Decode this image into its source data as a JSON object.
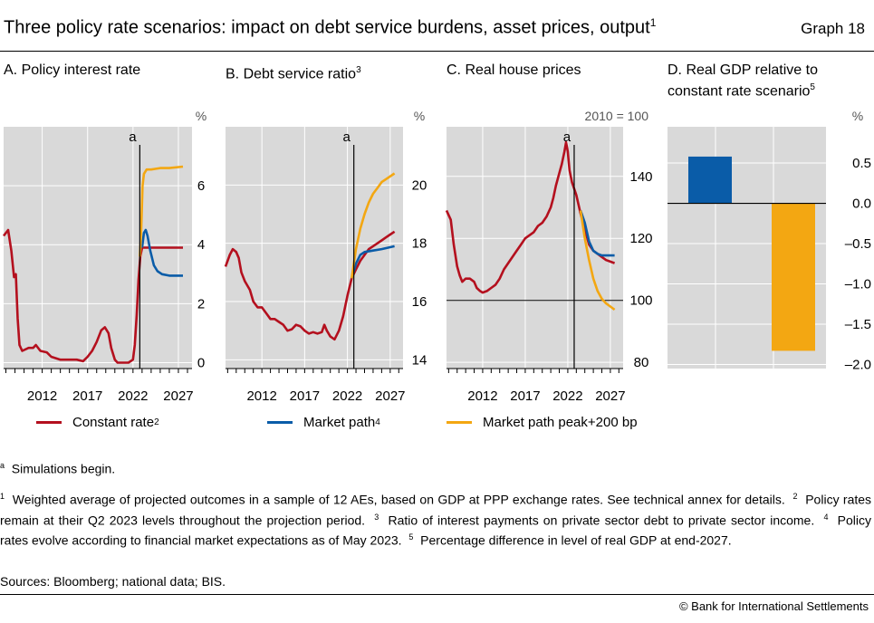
{
  "header": {
    "title": "Three policy rate scenarios: impact on debt service burdens, asset prices, output",
    "title_sup": "1",
    "graph_label": "Graph 18"
  },
  "colors": {
    "constant_rate": "#b4101e",
    "market_path": "#0a5ca8",
    "market_peak": "#f3a712",
    "panel_bg": "#d9d9d9",
    "grid": "#ffffff"
  },
  "panels": {
    "a": {
      "title": "A. Policy interest rate",
      "sup": "",
      "unit": "%",
      "marker": "a"
    },
    "b": {
      "title": "B. Debt service ratio",
      "sup": "3",
      "unit": "%",
      "marker": "a"
    },
    "c": {
      "title": "C. Real house prices",
      "sup": "",
      "unit": "2010 = 100",
      "marker": "a"
    },
    "d": {
      "title_line1": "D. Real GDP relative to",
      "title_line2": "constant rate scenario",
      "sup": "5",
      "unit": "%"
    }
  },
  "legend": {
    "constant_rate": "Constant rate",
    "constant_rate_sup": "2",
    "market_path": "Market path",
    "market_path_sup": "4",
    "market_peak": "Market path peak+200 bp"
  },
  "notes": {
    "a": "Simulations begin.",
    "n1": "Weighted average of projected outcomes in a sample of 12 AEs, based on GDP at PPP exchange rates. See technical annex for details.",
    "n2": "Policy rates remain at their Q2 2023 levels throughout the projection period.",
    "n3": "Ratio of interest payments on private sector debt to private sector income.",
    "n4": "Policy rates evolve according to financial market expectations as of May 2023.",
    "n5": "Percentage difference in level of real GDP at end-2027.",
    "sources": "Sources: Bloomberg; national data; BIS."
  },
  "copyright": "© Bank for International Settlements",
  "chart_data": [
    {
      "type": "line",
      "title": "A. Policy interest rate",
      "unit": "%",
      "xlim": [
        2007.75,
        2028.5
      ],
      "ylim": [
        -0.2,
        8.0
      ],
      "yticks": [
        0,
        2,
        4,
        6
      ],
      "xticks": [
        2012,
        2017,
        2022,
        2027
      ],
      "marker_x": 2022.75,
      "marker_label": "a",
      "series": [
        {
          "name": "Constant rate",
          "key": "constant_rate",
          "points": [
            [
              2007.75,
              4.3
            ],
            [
              2008.25,
              4.5
            ],
            [
              2008.6,
              3.8
            ],
            [
              2008.9,
              2.9
            ],
            [
              2009.1,
              3.0
            ],
            [
              2009.3,
              1.5
            ],
            [
              2009.5,
              0.6
            ],
            [
              2009.8,
              0.4
            ],
            [
              2010.5,
              0.5
            ],
            [
              2011.0,
              0.5
            ],
            [
              2011.3,
              0.6
            ],
            [
              2011.8,
              0.4
            ],
            [
              2012.5,
              0.35
            ],
            [
              2013,
              0.2
            ],
            [
              2014,
              0.1
            ],
            [
              2015,
              0.1
            ],
            [
              2015.8,
              0.1
            ],
            [
              2016.5,
              0.05
            ],
            [
              2017,
              0.2
            ],
            [
              2017.5,
              0.4
            ],
            [
              2018,
              0.7
            ],
            [
              2018.5,
              1.1
            ],
            [
              2018.9,
              1.2
            ],
            [
              2019.3,
              1.0
            ],
            [
              2019.6,
              0.5
            ],
            [
              2020.0,
              0.1
            ],
            [
              2020.3,
              0.0
            ],
            [
              2021.5,
              0.0
            ],
            [
              2022.0,
              0.1
            ],
            [
              2022.2,
              0.6
            ],
            [
              2022.4,
              1.6
            ],
            [
              2022.6,
              2.8
            ],
            [
              2022.8,
              3.6
            ],
            [
              2023.0,
              3.9
            ],
            [
              2023.3,
              3.9
            ],
            [
              2027.5,
              3.9
            ]
          ]
        },
        {
          "name": "Market path",
          "key": "market_path",
          "points": [
            [
              2023.0,
              3.9
            ],
            [
              2023.2,
              4.4
            ],
            [
              2023.4,
              4.5
            ],
            [
              2023.6,
              4.3
            ],
            [
              2023.9,
              3.8
            ],
            [
              2024.3,
              3.3
            ],
            [
              2024.7,
              3.1
            ],
            [
              2025.2,
              3.0
            ],
            [
              2026,
              2.95
            ],
            [
              2027.5,
              2.95
            ]
          ]
        },
        {
          "name": "Market path peak+200 bp",
          "key": "market_peak",
          "points": [
            [
              2022.75,
              3.6
            ],
            [
              2022.9,
              4.5
            ],
            [
              2023.05,
              6.0
            ],
            [
              2023.2,
              6.4
            ],
            [
              2023.5,
              6.55
            ],
            [
              2024,
              6.55
            ],
            [
              2025,
              6.6
            ],
            [
              2026,
              6.6
            ],
            [
              2027.5,
              6.65
            ]
          ]
        }
      ]
    },
    {
      "type": "line",
      "title": "B. Debt service ratio",
      "unit": "%",
      "xlim": [
        2007.75,
        2028.5
      ],
      "ylim": [
        13.7,
        22.0
      ],
      "yticks": [
        14,
        16,
        18,
        20
      ],
      "xticks": [
        2012,
        2017,
        2022,
        2027
      ],
      "marker_x": 2022.75,
      "marker_label": "a",
      "series": [
        {
          "name": "Constant rate",
          "key": "constant_rate",
          "points": [
            [
              2007.75,
              17.2
            ],
            [
              2008.25,
              17.6
            ],
            [
              2008.6,
              17.8
            ],
            [
              2009.0,
              17.7
            ],
            [
              2009.3,
              17.5
            ],
            [
              2009.6,
              17.0
            ],
            [
              2010,
              16.7
            ],
            [
              2010.6,
              16.4
            ],
            [
              2011,
              16.0
            ],
            [
              2011.5,
              15.8
            ],
            [
              2012,
              15.8
            ],
            [
              2012.5,
              15.6
            ],
            [
              2013,
              15.4
            ],
            [
              2013.5,
              15.4
            ],
            [
              2014,
              15.3
            ],
            [
              2014.5,
              15.2
            ],
            [
              2015,
              15.0
            ],
            [
              2015.5,
              15.05
            ],
            [
              2016,
              15.2
            ],
            [
              2016.5,
              15.15
            ],
            [
              2017,
              15.0
            ],
            [
              2017.5,
              14.9
            ],
            [
              2018,
              14.95
            ],
            [
              2018.5,
              14.9
            ],
            [
              2019,
              14.95
            ],
            [
              2019.3,
              15.2
            ],
            [
              2019.6,
              15.0
            ],
            [
              2020,
              14.8
            ],
            [
              2020.5,
              14.7
            ],
            [
              2021,
              15.0
            ],
            [
              2021.5,
              15.5
            ],
            [
              2022,
              16.2
            ],
            [
              2022.5,
              16.8
            ],
            [
              2023,
              17.1
            ],
            [
              2023.5,
              17.4
            ],
            [
              2024,
              17.6
            ],
            [
              2024.5,
              17.8
            ],
            [
              2025,
              17.9
            ],
            [
              2025.5,
              18.0
            ],
            [
              2026,
              18.1
            ],
            [
              2026.5,
              18.2
            ],
            [
              2027,
              18.3
            ],
            [
              2027.5,
              18.4
            ]
          ]
        },
        {
          "name": "Market path",
          "key": "market_path",
          "points": [
            [
              2022.5,
              16.8
            ],
            [
              2023,
              17.3
            ],
            [
              2023.5,
              17.6
            ],
            [
              2024,
              17.7
            ],
            [
              2025,
              17.75
            ],
            [
              2026,
              17.8
            ],
            [
              2027.5,
              17.9
            ]
          ]
        },
        {
          "name": "Market path peak+200 bp",
          "key": "market_peak",
          "points": [
            [
              2022.5,
              16.8
            ],
            [
              2023,
              17.8
            ],
            [
              2023.5,
              18.5
            ],
            [
              2024,
              19.0
            ],
            [
              2024.5,
              19.4
            ],
            [
              2025,
              19.7
            ],
            [
              2025.5,
              19.9
            ],
            [
              2026,
              20.1
            ],
            [
              2026.5,
              20.2
            ],
            [
              2027.5,
              20.4
            ]
          ]
        }
      ]
    },
    {
      "type": "line",
      "title": "C. Real house prices",
      "unit": "2010 = 100",
      "xlim": [
        2007.75,
        2028.5
      ],
      "ylim": [
        78.0,
        156.0
      ],
      "yticks": [
        80,
        100,
        120,
        140
      ],
      "xticks": [
        2012,
        2017,
        2022,
        2027
      ],
      "marker_x": 2022.75,
      "marker_label": "a",
      "baseline": 100,
      "series": [
        {
          "name": "Constant rate",
          "key": "constant_rate",
          "points": [
            [
              2007.75,
              129
            ],
            [
              2008.25,
              126
            ],
            [
              2008.6,
              118
            ],
            [
              2009,
              111
            ],
            [
              2009.3,
              108
            ],
            [
              2009.6,
              106
            ],
            [
              2010,
              107
            ],
            [
              2010.5,
              107
            ],
            [
              2011,
              106
            ],
            [
              2011.3,
              104
            ],
            [
              2011.7,
              103
            ],
            [
              2012,
              102.5
            ],
            [
              2012.5,
              103
            ],
            [
              2013,
              104
            ],
            [
              2013.5,
              105
            ],
            [
              2014,
              107
            ],
            [
              2014.5,
              110
            ],
            [
              2015,
              112
            ],
            [
              2015.5,
              114
            ],
            [
              2016,
              116
            ],
            [
              2016.5,
              118
            ],
            [
              2017,
              120
            ],
            [
              2017.5,
              121
            ],
            [
              2018,
              122
            ],
            [
              2018.5,
              124
            ],
            [
              2019,
              125
            ],
            [
              2019.5,
              127
            ],
            [
              2020,
              130
            ],
            [
              2020.3,
              133
            ],
            [
              2020.6,
              137
            ],
            [
              2021,
              141
            ],
            [
              2021.3,
              144
            ],
            [
              2021.6,
              148
            ],
            [
              2021.8,
              151
            ],
            [
              2022.0,
              148
            ],
            [
              2022.2,
              142
            ],
            [
              2022.5,
              138
            ],
            [
              2022.75,
              136
            ],
            [
              2023,
              134
            ],
            [
              2023.5,
              128
            ],
            [
              2024,
              123
            ],
            [
              2024.5,
              118
            ],
            [
              2025,
              116
            ],
            [
              2025.5,
              115
            ],
            [
              2026,
              114
            ],
            [
              2026.5,
              113
            ],
            [
              2027,
              112.5
            ],
            [
              2027.5,
              112
            ]
          ]
        },
        {
          "name": "Market path",
          "key": "market_path",
          "points": [
            [
              2023.5,
              129
            ],
            [
              2024,
              125
            ],
            [
              2024.5,
              119
            ],
            [
              2025,
              116
            ],
            [
              2025.5,
              115
            ],
            [
              2026,
              114.5
            ],
            [
              2026.5,
              114.5
            ],
            [
              2027.5,
              114.5
            ]
          ]
        },
        {
          "name": "Market path peak+200 bp",
          "key": "market_peak",
          "points": [
            [
              2023.5,
              129
            ],
            [
              2024,
              120
            ],
            [
              2024.5,
              113
            ],
            [
              2025,
              107
            ],
            [
              2025.5,
              103
            ],
            [
              2026,
              100.5
            ],
            [
              2026.5,
              99
            ],
            [
              2027,
              98
            ],
            [
              2027.5,
              97
            ]
          ]
        }
      ]
    },
    {
      "type": "bar",
      "title": "D. Real GDP relative to constant rate scenario",
      "unit": "%",
      "ylim": [
        -2.05,
        0.95
      ],
      "yticks": [
        0.5,
        0.0,
        -0.5,
        -1.0,
        -1.5,
        -2.0
      ],
      "ytick_labels": [
        "0.5",
        "0.0",
        "–0.5",
        "–1.0",
        "–1.5",
        "–2.0"
      ],
      "bars": [
        {
          "name": "Market path",
          "key": "market_path",
          "value": 0.58
        },
        {
          "name": "Market path peak+200 bp",
          "key": "market_peak",
          "value": -1.83
        }
      ]
    }
  ]
}
